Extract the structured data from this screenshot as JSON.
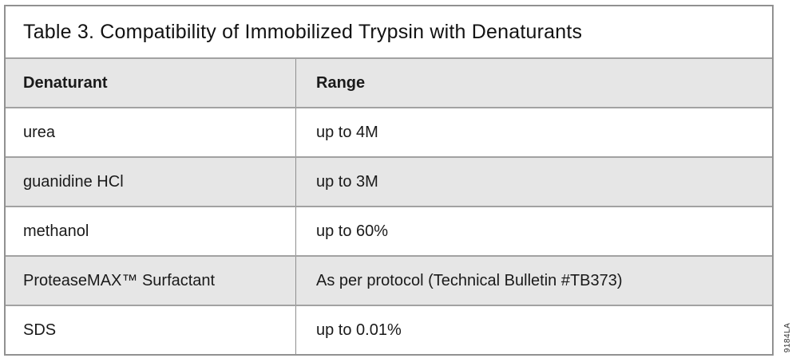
{
  "table": {
    "title": "Table 3. Compatibility of Immobilized Trypsin with Denaturants",
    "columns": {
      "denaturant": "Denaturant",
      "range": "Range"
    },
    "rows": [
      {
        "denaturant": "urea",
        "range": "up to 4M"
      },
      {
        "denaturant": "guanidine HCl",
        "range": "up to 3M"
      },
      {
        "denaturant": "methanol",
        "range": "up to 60%"
      },
      {
        "denaturant": "ProteaseMAX™ Surfactant",
        "range": "As per protocol (Technical Bulletin #TB373)"
      },
      {
        "denaturant": "SDS",
        "range": "up to 0.01%"
      }
    ]
  },
  "figure_code": "9184LA",
  "colors": {
    "row_alt_background": "#e6e6e6",
    "border": "#919191",
    "text": "#1a1a1a",
    "page_background": "#ffffff"
  }
}
